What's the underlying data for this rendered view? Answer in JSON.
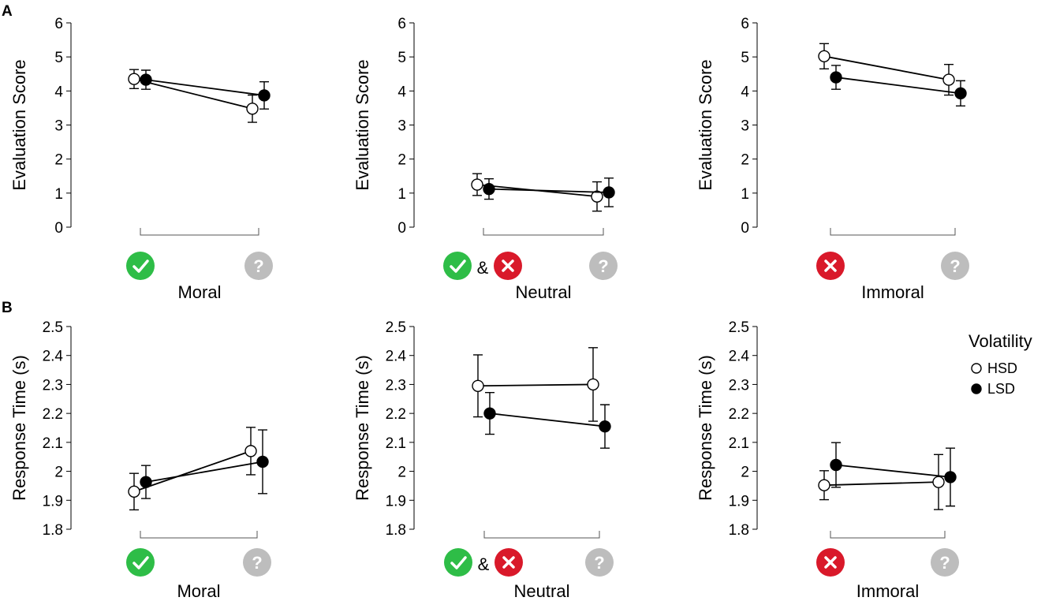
{
  "panel_labels": [
    "A",
    "B"
  ],
  "legend": {
    "title": "Volatility",
    "entries": [
      "HSD",
      "LSD"
    ]
  },
  "colors": {
    "check": "#2ebd47",
    "cross": "#d9192a",
    "question": "#bdbdbd",
    "line": "#000000"
  },
  "ampersand": "&",
  "chart_data": [
    {
      "type": "line",
      "id": "a-moral",
      "group": "Moral",
      "ylabel": "Evaluation Score",
      "ylim": [
        0,
        6
      ],
      "yticks": [
        "0",
        "1",
        "2",
        "3",
        "4",
        "5",
        "6"
      ],
      "conditions": [
        "check",
        "question"
      ],
      "legend": false,
      "series": [
        {
          "name": "HSD",
          "values": [
            4.35,
            3.48
          ],
          "err": [
            0.28,
            0.4
          ]
        },
        {
          "name": "LSD",
          "values": [
            4.33,
            3.87
          ],
          "err": [
            0.28,
            0.4
          ]
        }
      ]
    },
    {
      "type": "line",
      "id": "a-neutral",
      "group": "Neutral",
      "ylabel": "Evaluation Score",
      "ylim": [
        0,
        6
      ],
      "yticks": [
        "0",
        "1",
        "2",
        "3",
        "4",
        "5",
        "6"
      ],
      "conditions": [
        "check-cross",
        "question"
      ],
      "legend": true,
      "series": [
        {
          "name": "HSD",
          "values": [
            1.25,
            0.9
          ],
          "err": [
            0.32,
            0.43
          ]
        },
        {
          "name": "LSD",
          "values": [
            1.12,
            1.02
          ],
          "err": [
            0.3,
            0.42
          ]
        }
      ]
    },
    {
      "type": "line",
      "id": "a-immoral",
      "group": "Immoral",
      "ylabel": "Evaluation Score",
      "ylim": [
        0,
        6
      ],
      "yticks": [
        "0",
        "1",
        "2",
        "3",
        "4",
        "5",
        "6"
      ],
      "conditions": [
        "cross",
        "question"
      ],
      "legend": false,
      "series": [
        {
          "name": "HSD",
          "values": [
            5.02,
            4.33
          ],
          "err": [
            0.37,
            0.45
          ]
        },
        {
          "name": "LSD",
          "values": [
            4.4,
            3.93
          ],
          "err": [
            0.35,
            0.37
          ]
        }
      ]
    },
    {
      "type": "line",
      "id": "b-moral",
      "group": "Moral",
      "ylabel": "Response Time (s)",
      "ylim": [
        1.8,
        2.5
      ],
      "yticks": [
        "1.8",
        "1.9",
        "2",
        "2.1",
        "2.2",
        "2.3",
        "2.4",
        "2.5"
      ],
      "conditions": [
        "check",
        "question"
      ],
      "legend": false,
      "series": [
        {
          "name": "HSD",
          "values": [
            1.93,
            2.07
          ],
          "err": [
            0.063,
            0.082
          ]
        },
        {
          "name": "LSD",
          "values": [
            1.963,
            2.033
          ],
          "err": [
            0.057,
            0.11
          ]
        }
      ]
    },
    {
      "type": "line",
      "id": "b-neutral",
      "group": "Neutral",
      "ylabel": "Response Time (s)",
      "ylim": [
        1.8,
        2.5
      ],
      "yticks": [
        "1.8",
        "1.9",
        "2",
        "2.1",
        "2.2",
        "2.3",
        "2.4",
        "2.5"
      ],
      "conditions": [
        "check-cross",
        "question"
      ],
      "legend": false,
      "series": [
        {
          "name": "HSD",
          "values": [
            2.295,
            2.3
          ],
          "err": [
            0.107,
            0.127
          ]
        },
        {
          "name": "LSD",
          "values": [
            2.2,
            2.155
          ],
          "err": [
            0.072,
            0.075
          ]
        }
      ]
    },
    {
      "type": "line",
      "id": "b-immoral",
      "group": "Immoral",
      "ylabel": "Response Time (s)",
      "ylim": [
        1.8,
        2.5
      ],
      "yticks": [
        "1.8",
        "1.9",
        "2",
        "2.1",
        "2.2",
        "2.3",
        "2.4",
        "2.5"
      ],
      "conditions": [
        "cross",
        "question"
      ],
      "legend": true,
      "series": [
        {
          "name": "HSD",
          "values": [
            1.952,
            1.963
          ],
          "err": [
            0.05,
            0.095
          ]
        },
        {
          "name": "LSD",
          "values": [
            2.022,
            1.98
          ],
          "err": [
            0.077,
            0.1
          ]
        }
      ]
    }
  ]
}
